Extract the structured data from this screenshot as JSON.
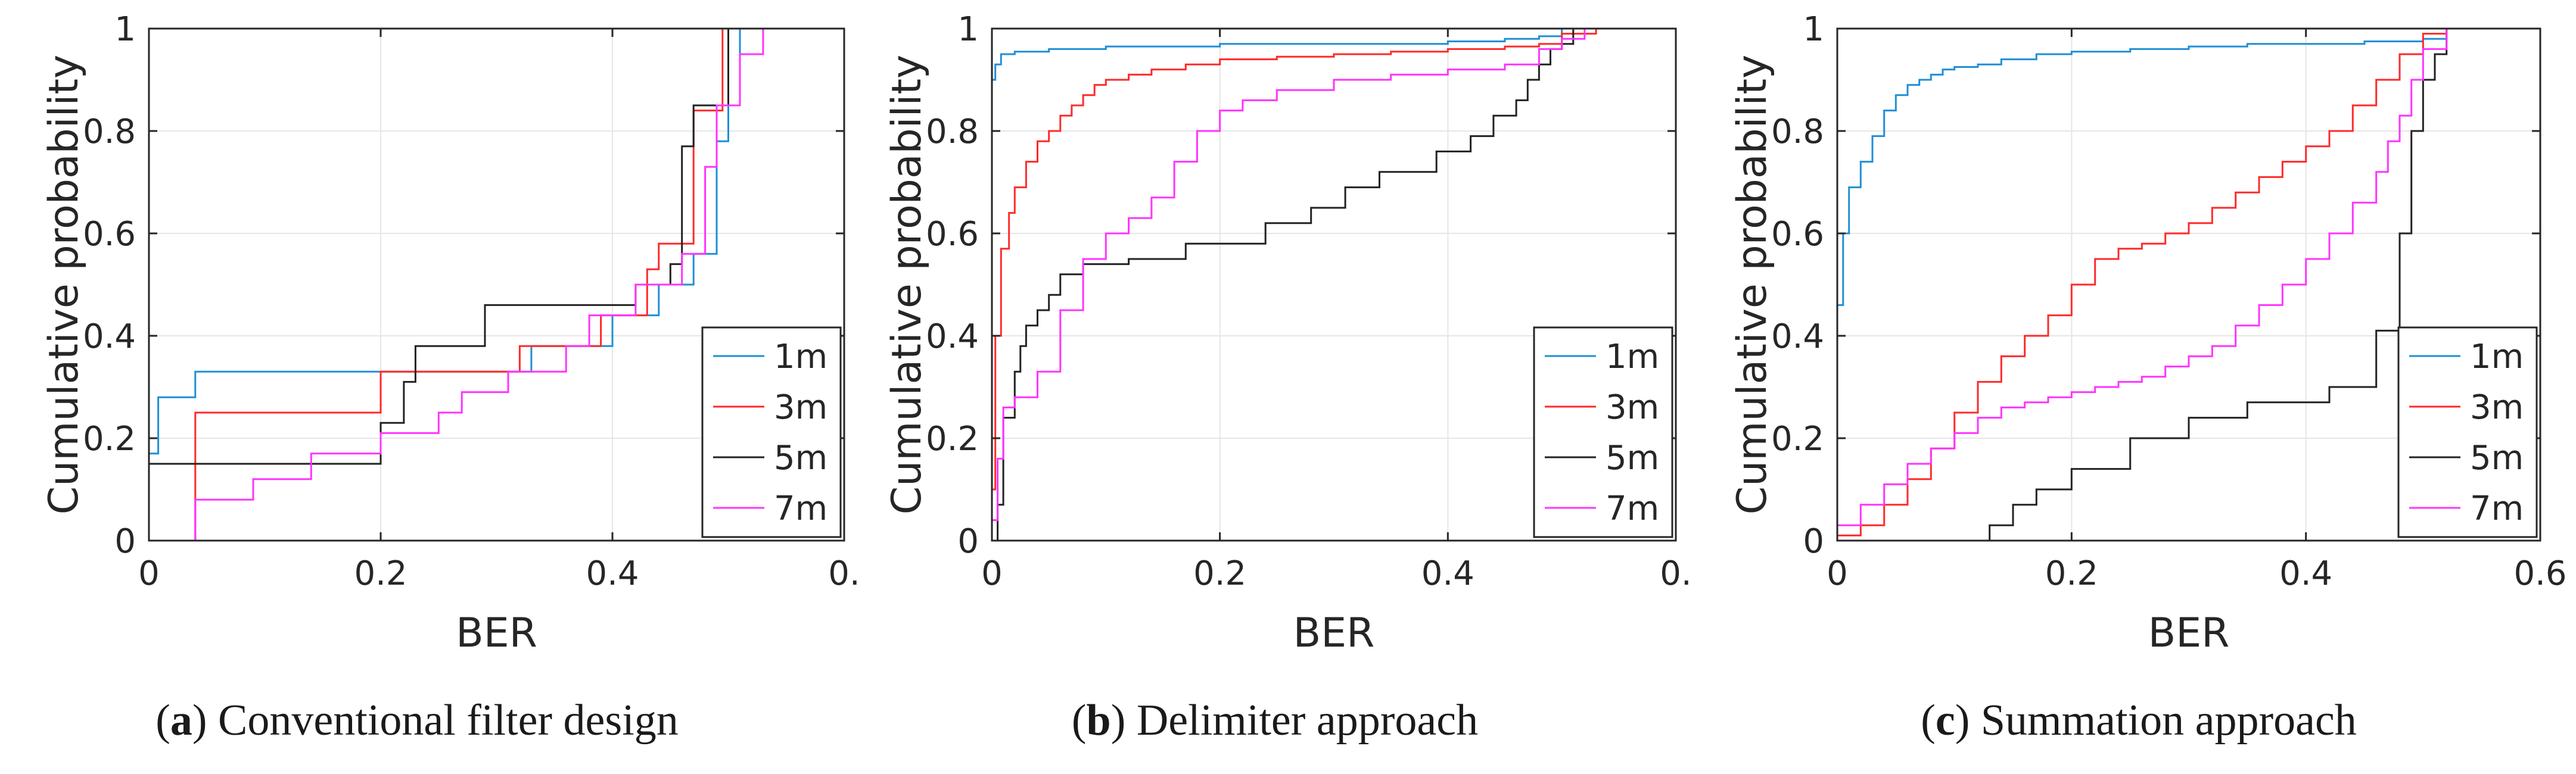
{
  "colors": {
    "1m": "#1f8fd6",
    "3m": "#ff2a2a",
    "5m": "#222222",
    "7m": "#ff33ff",
    "grid": "#e6e6e6",
    "axis": "#262626"
  },
  "captions": [
    {
      "letter": "a",
      "text": ") Conventional filter design"
    },
    {
      "letter": "b",
      "text": ") Delimiter approach"
    },
    {
      "letter": "c",
      "text": ") Summation approach"
    }
  ],
  "chart_data": [
    {
      "type": "line",
      "step": true,
      "title": "",
      "xlabel": "BER",
      "ylabel": "Cumulative probability",
      "xlim": [
        0,
        0.6
      ],
      "ylim": [
        0,
        1
      ],
      "xticks": [
        0,
        0.2,
        0.4,
        0.6
      ],
      "xtick_labels": [
        "0",
        "0.2",
        "0.4",
        "0."
      ],
      "yticks": [
        0,
        0.2,
        0.4,
        0.6,
        0.8,
        1
      ],
      "ytick_labels": [
        "0",
        "0.2",
        "0.4",
        "0.6",
        "0.8",
        "1"
      ],
      "grid": true,
      "legend": {
        "position": "bottom-right",
        "entries": [
          "1m",
          "3m",
          "5m",
          "7m"
        ]
      },
      "series": [
        {
          "name": "1m",
          "x": [
            0,
            0.008,
            0.04,
            0.33,
            0.4,
            0.44,
            0.47,
            0.49,
            0.5,
            0.51,
            0.52
          ],
          "y": [
            0.17,
            0.28,
            0.33,
            0.38,
            0.44,
            0.5,
            0.56,
            0.78,
            0.85,
            1,
            1
          ]
        },
        {
          "name": "3m",
          "x": [
            0.005,
            0.04,
            0.2,
            0.32,
            0.39,
            0.43,
            0.44,
            0.47,
            0.48,
            0.495,
            0.51,
            0.53
          ],
          "y": [
            0,
            0.25,
            0.33,
            0.38,
            0.44,
            0.53,
            0.58,
            0.84,
            0.84,
            1,
            1,
            1
          ]
        },
        {
          "name": "5m",
          "x": [
            0,
            0.15,
            0.2,
            0.22,
            0.23,
            0.24,
            0.29,
            0.38,
            0.41,
            0.42,
            0.45,
            0.46,
            0.47,
            0.5,
            0.51
          ],
          "y": [
            0.15,
            0.15,
            0.23,
            0.31,
            0.38,
            0.38,
            0.46,
            0.46,
            0.46,
            0.5,
            0.54,
            0.77,
            0.85,
            1,
            1
          ]
        },
        {
          "name": "7m",
          "x": [
            0,
            0.04,
            0.09,
            0.14,
            0.2,
            0.25,
            0.27,
            0.31,
            0.36,
            0.38,
            0.42,
            0.46,
            0.48,
            0.49,
            0.51,
            0.53
          ],
          "y": [
            0,
            0.08,
            0.12,
            0.17,
            0.21,
            0.25,
            0.29,
            0.33,
            0.38,
            0.44,
            0.5,
            0.56,
            0.73,
            0.85,
            0.95,
            1
          ]
        }
      ]
    },
    {
      "type": "line",
      "step": true,
      "title": "",
      "xlabel": "BER",
      "ylabel": "Cumulative probability",
      "xlim": [
        0,
        0.6
      ],
      "ylim": [
        0,
        1
      ],
      "xticks": [
        0,
        0.2,
        0.4,
        0.6
      ],
      "xtick_labels": [
        "0",
        "0.2",
        "0.4",
        "0."
      ],
      "yticks": [
        0,
        0.2,
        0.4,
        0.6,
        0.8,
        1
      ],
      "ytick_labels": [
        "0",
        "0.2",
        "0.4",
        "0.6",
        "0.8",
        "1"
      ],
      "grid": true,
      "legend": {
        "position": "bottom-right",
        "entries": [
          "1m",
          "3m",
          "5m",
          "7m"
        ]
      },
      "series": [
        {
          "name": "1m",
          "x": [
            0,
            0.003,
            0.008,
            0.02,
            0.05,
            0.1,
            0.2,
            0.3,
            0.4,
            0.45,
            0.48,
            0.5,
            0.53
          ],
          "y": [
            0.9,
            0.93,
            0.95,
            0.955,
            0.96,
            0.965,
            0.97,
            0.97,
            0.975,
            0.98,
            0.985,
            1,
            1
          ]
        },
        {
          "name": "3m",
          "x": [
            0,
            0.003,
            0.008,
            0.015,
            0.02,
            0.03,
            0.04,
            0.05,
            0.06,
            0.07,
            0.08,
            0.09,
            0.1,
            0.12,
            0.14,
            0.17,
            0.2,
            0.25,
            0.3,
            0.35,
            0.4,
            0.45,
            0.48,
            0.5,
            0.53
          ],
          "y": [
            0.1,
            0.4,
            0.57,
            0.64,
            0.69,
            0.74,
            0.78,
            0.8,
            0.83,
            0.85,
            0.87,
            0.89,
            0.9,
            0.91,
            0.92,
            0.93,
            0.94,
            0.945,
            0.95,
            0.955,
            0.96,
            0.965,
            0.97,
            0.99,
            1
          ]
        },
        {
          "name": "5m",
          "x": [
            0,
            0.005,
            0.01,
            0.02,
            0.025,
            0.03,
            0.04,
            0.05,
            0.06,
            0.08,
            0.12,
            0.17,
            0.24,
            0.28,
            0.31,
            0.34,
            0.37,
            0.39,
            0.42,
            0.44,
            0.46,
            0.47,
            0.48,
            0.49,
            0.5,
            0.51,
            0.52
          ],
          "y": [
            0,
            0.07,
            0.24,
            0.33,
            0.38,
            0.42,
            0.45,
            0.48,
            0.52,
            0.54,
            0.55,
            0.58,
            0.62,
            0.65,
            0.69,
            0.72,
            0.72,
            0.76,
            0.79,
            0.83,
            0.86,
            0.9,
            0.93,
            0.96,
            0.97,
            1,
            1
          ]
        },
        {
          "name": "7m",
          "x": [
            0,
            0.005,
            0.01,
            0.02,
            0.04,
            0.06,
            0.08,
            0.1,
            0.12,
            0.14,
            0.16,
            0.18,
            0.2,
            0.22,
            0.25,
            0.3,
            0.35,
            0.4,
            0.45,
            0.48,
            0.5,
            0.52,
            0.54
          ],
          "y": [
            0.04,
            0.16,
            0.26,
            0.28,
            0.33,
            0.45,
            0.55,
            0.6,
            0.63,
            0.67,
            0.74,
            0.8,
            0.84,
            0.86,
            0.88,
            0.9,
            0.91,
            0.92,
            0.93,
            0.96,
            0.98,
            1,
            1
          ]
        }
      ]
    },
    {
      "type": "line",
      "step": true,
      "title": "",
      "xlabel": "BER",
      "ylabel": "Cumulative probability",
      "xlim": [
        0,
        0.6
      ],
      "ylim": [
        0,
        1
      ],
      "xticks": [
        0,
        0.2,
        0.4,
        0.6
      ],
      "xtick_labels": [
        "0",
        "0.2",
        "0.4",
        "0.6"
      ],
      "yticks": [
        0,
        0.2,
        0.4,
        0.6,
        0.8,
        1
      ],
      "ytick_labels": [
        "0",
        "0.2",
        "0.4",
        "0.6",
        "0.8",
        "1"
      ],
      "grid": true,
      "legend": {
        "position": "bottom-right",
        "entries": [
          "1m",
          "3m",
          "5m",
          "7m"
        ]
      },
      "series": [
        {
          "name": "1m",
          "x": [
            0,
            0.005,
            0.01,
            0.02,
            0.03,
            0.04,
            0.05,
            0.06,
            0.07,
            0.08,
            0.09,
            0.1,
            0.12,
            0.14,
            0.17,
            0.2,
            0.25,
            0.3,
            0.35,
            0.4,
            0.45,
            0.5,
            0.52
          ],
          "y": [
            0.46,
            0.6,
            0.69,
            0.74,
            0.79,
            0.84,
            0.87,
            0.89,
            0.9,
            0.91,
            0.92,
            0.925,
            0.93,
            0.94,
            0.95,
            0.955,
            0.96,
            0.965,
            0.97,
            0.97,
            0.975,
            0.98,
            1
          ]
        },
        {
          "name": "3m",
          "x": [
            0,
            0.02,
            0.04,
            0.06,
            0.08,
            0.1,
            0.12,
            0.14,
            0.16,
            0.18,
            0.2,
            0.22,
            0.24,
            0.26,
            0.28,
            0.3,
            0.32,
            0.34,
            0.36,
            0.38,
            0.4,
            0.42,
            0.44,
            0.46,
            0.48,
            0.5,
            0.52
          ],
          "y": [
            0.01,
            0.03,
            0.07,
            0.12,
            0.18,
            0.25,
            0.31,
            0.36,
            0.4,
            0.44,
            0.5,
            0.55,
            0.57,
            0.58,
            0.6,
            0.62,
            0.65,
            0.68,
            0.71,
            0.74,
            0.77,
            0.8,
            0.85,
            0.9,
            0.95,
            0.99,
            1
          ]
        },
        {
          "name": "5m",
          "x": [
            0.12,
            0.13,
            0.15,
            0.17,
            0.2,
            0.25,
            0.3,
            0.35,
            0.4,
            0.42,
            0.46,
            0.48,
            0.49,
            0.5,
            0.51,
            0.52,
            0.53
          ],
          "y": [
            0,
            0.03,
            0.07,
            0.1,
            0.14,
            0.2,
            0.24,
            0.27,
            0.27,
            0.3,
            0.41,
            0.6,
            0.8,
            0.9,
            0.95,
            1,
            1
          ]
        },
        {
          "name": "7m",
          "x": [
            0,
            0.02,
            0.04,
            0.06,
            0.08,
            0.1,
            0.12,
            0.14,
            0.16,
            0.18,
            0.2,
            0.22,
            0.24,
            0.26,
            0.28,
            0.3,
            0.32,
            0.34,
            0.36,
            0.38,
            0.4,
            0.42,
            0.44,
            0.46,
            0.47,
            0.48,
            0.49,
            0.5,
            0.52
          ],
          "y": [
            0.03,
            0.07,
            0.11,
            0.15,
            0.18,
            0.21,
            0.24,
            0.26,
            0.27,
            0.28,
            0.29,
            0.3,
            0.31,
            0.32,
            0.34,
            0.36,
            0.38,
            0.42,
            0.46,
            0.5,
            0.55,
            0.6,
            0.66,
            0.72,
            0.78,
            0.83,
            0.9,
            0.96,
            1
          ]
        }
      ]
    }
  ]
}
